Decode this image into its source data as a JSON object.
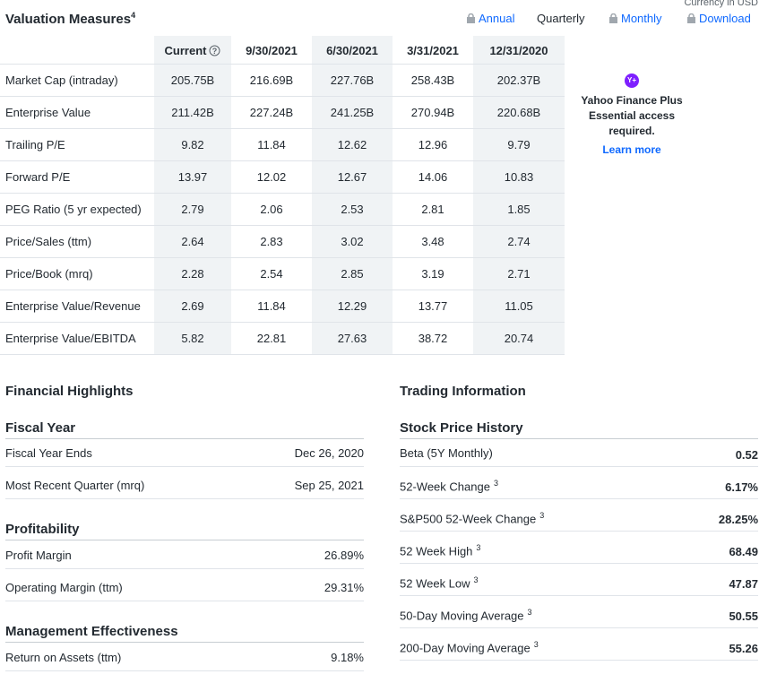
{
  "header": {
    "title": "Valuation Measures",
    "title_sup": "4",
    "currency_note": "Currency in USD",
    "tabs": [
      "Annual",
      "Quarterly",
      "Monthly"
    ],
    "download": "Download"
  },
  "valuation": {
    "columns": [
      "Current",
      "9/30/2021",
      "6/30/2021",
      "3/31/2021",
      "12/31/2020"
    ],
    "rows": [
      {
        "label": "Market Cap (intraday)",
        "values": [
          "205.75B",
          "216.69B",
          "227.76B",
          "258.43B",
          "202.37B"
        ]
      },
      {
        "label": "Enterprise Value",
        "values": [
          "211.42B",
          "227.24B",
          "241.25B",
          "270.94B",
          "220.68B"
        ]
      },
      {
        "label": "Trailing P/E",
        "values": [
          "9.82",
          "11.84",
          "12.62",
          "12.96",
          "9.79"
        ]
      },
      {
        "label": "Forward P/E",
        "values": [
          "13.97",
          "12.02",
          "12.67",
          "14.06",
          "10.83"
        ]
      },
      {
        "label": "PEG Ratio (5 yr expected)",
        "values": [
          "2.79",
          "2.06",
          "2.53",
          "2.81",
          "1.85"
        ]
      },
      {
        "label": "Price/Sales (ttm)",
        "values": [
          "2.64",
          "2.83",
          "3.02",
          "3.48",
          "2.74"
        ]
      },
      {
        "label": "Price/Book (mrq)",
        "values": [
          "2.28",
          "2.54",
          "2.85",
          "3.19",
          "2.71"
        ]
      },
      {
        "label": "Enterprise Value/Revenue",
        "values": [
          "2.69",
          "11.84",
          "12.29",
          "13.77",
          "11.05"
        ]
      },
      {
        "label": "Enterprise Value/EBITDA",
        "values": [
          "5.82",
          "22.81",
          "27.63",
          "38.72",
          "20.74"
        ]
      }
    ]
  },
  "promo": {
    "badge": "Y+",
    "text": "Yahoo Finance Plus Essential access required.",
    "link": "Learn more"
  },
  "financial_highlights": {
    "title": "Financial Highlights",
    "sections": [
      {
        "title": "Fiscal Year",
        "rows": [
          {
            "label": "Fiscal Year Ends",
            "value": "Dec 26, 2020"
          },
          {
            "label": "Most Recent Quarter (mrq)",
            "value": "Sep 25, 2021"
          }
        ]
      },
      {
        "title": "Profitability",
        "rows": [
          {
            "label": "Profit Margin",
            "value": "26.89%"
          },
          {
            "label": "Operating Margin (ttm)",
            "value": "29.31%"
          }
        ]
      },
      {
        "title": "Management Effectiveness",
        "rows": [
          {
            "label": "Return on Assets (ttm)",
            "value": "9.18%"
          }
        ]
      }
    ]
  },
  "trading_information": {
    "title": "Trading Information",
    "sections": [
      {
        "title": "Stock Price History",
        "rows": [
          {
            "label": "Beta (5Y Monthly)",
            "value": "0.52"
          },
          {
            "label": "52-Week Change",
            "sup": "3",
            "value": "6.17%"
          },
          {
            "label": "S&P500 52-Week Change",
            "sup": "3",
            "value": "28.25%"
          },
          {
            "label": "52 Week High",
            "sup": "3",
            "value": "68.49"
          },
          {
            "label": "52 Week Low",
            "sup": "3",
            "value": "47.87"
          },
          {
            "label": "50-Day Moving Average",
            "sup": "3",
            "value": "50.55"
          },
          {
            "label": "200-Day Moving Average",
            "sup": "3",
            "value": "55.26"
          }
        ]
      }
    ]
  }
}
